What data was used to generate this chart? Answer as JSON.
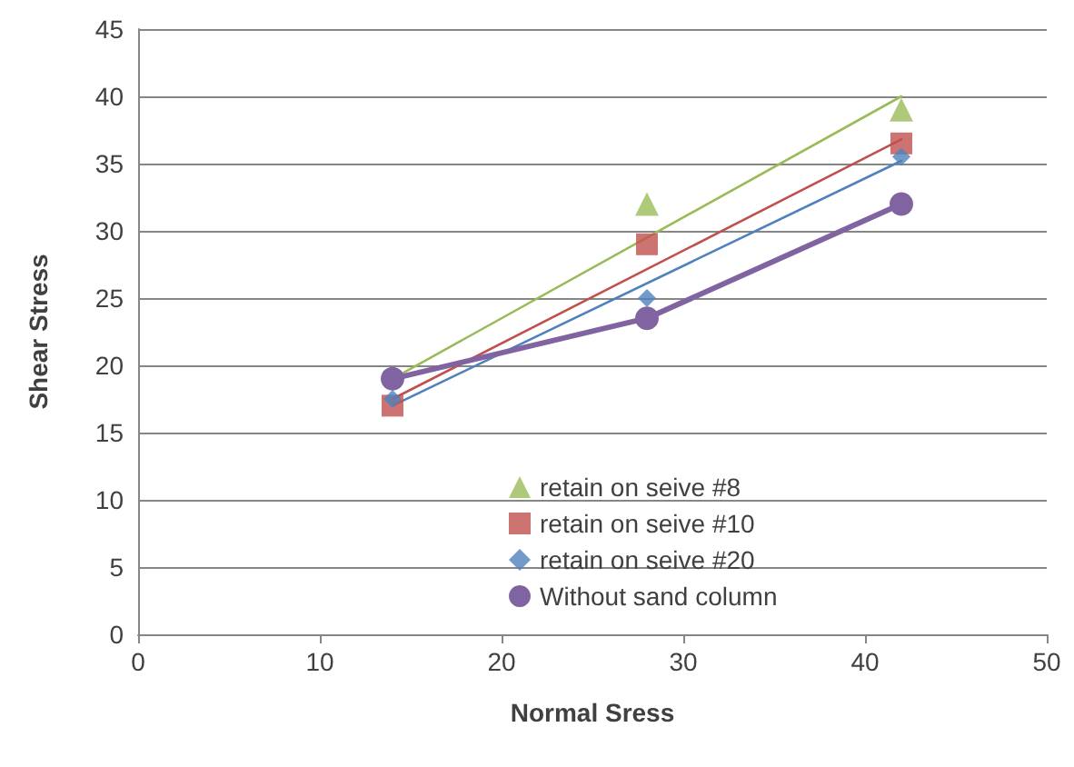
{
  "chart_data": {
    "type": "scatter",
    "xlabel": "Normal Sress",
    "ylabel": "Shear Stress",
    "xlim": [
      0,
      50
    ],
    "xticks": [
      0,
      10,
      20,
      30,
      40,
      50
    ],
    "ylim": [
      0,
      45
    ],
    "yticks": [
      0,
      5,
      10,
      15,
      20,
      25,
      30,
      35,
      40,
      45
    ],
    "grid": "y",
    "legend": "bottom",
    "series": [
      {
        "name": "retain on seive #8",
        "marker": "triangle",
        "color": "#9bbb59",
        "x": [
          28,
          42
        ],
        "values": [
          32,
          39
        ]
      },
      {
        "name": "retain on seive #10",
        "marker": "square",
        "color": "#c0504d",
        "x": [
          14,
          28,
          42
        ],
        "values": [
          17,
          29,
          36.5
        ]
      },
      {
        "name": "retain on seive #20",
        "marker": "diamond",
        "color": "#4f81bd",
        "x": [
          14,
          28,
          42
        ],
        "values": [
          17.5,
          25,
          35.5
        ]
      },
      {
        "name": "Without sand column",
        "type": "line",
        "marker": "circle",
        "color": "#8064a2",
        "x": [
          14,
          28,
          42
        ],
        "values": [
          19,
          23.5,
          32
        ]
      },
      {
        "type": "line",
        "marker": "none",
        "color": "#9bbb59",
        "x": [
          14,
          42
        ],
        "values": [
          19,
          40
        ]
      },
      {
        "type": "line",
        "marker": "none",
        "color": "#c0504d",
        "x": [
          14,
          42
        ],
        "values": [
          17.5,
          36.8
        ]
      },
      {
        "type": "line",
        "marker": "none",
        "color": "#4f81bd",
        "x": [
          14,
          42
        ],
        "values": [
          17,
          35.2
        ]
      }
    ]
  }
}
